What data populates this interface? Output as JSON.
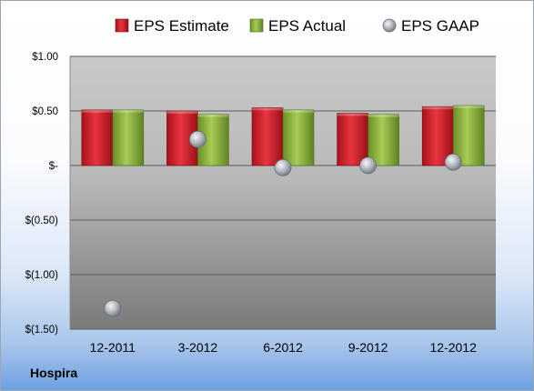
{
  "company": "Hospira",
  "chart_data": {
    "type": "bar",
    "categories": [
      "12-2011",
      "3-2012",
      "6-2012",
      "9-2012",
      "12-2012"
    ],
    "series": [
      {
        "name": "EPS Estimate",
        "mark": "bar",
        "color": "#d9212c",
        "values": [
          0.51,
          0.5,
          0.53,
          0.48,
          0.54
        ]
      },
      {
        "name": "EPS Actual",
        "mark": "bar",
        "color": "#8cb63c",
        "values": [
          0.51,
          0.47,
          0.51,
          0.47,
          0.55
        ]
      },
      {
        "name": "EPS GAAP",
        "mark": "marker",
        "color": "#9aa0a8",
        "values": [
          -1.31,
          0.24,
          -0.02,
          0.0,
          0.03
        ]
      }
    ],
    "y_ticks": [
      {
        "value": 1.0,
        "label": "$1.00"
      },
      {
        "value": 0.5,
        "label": "$0.50"
      },
      {
        "value": 0.0,
        "label": "$-"
      },
      {
        "value": -0.5,
        "label": "$(0.50)"
      },
      {
        "value": -1.0,
        "label": "$(1.00)"
      },
      {
        "value": -1.5,
        "label": "$(1.50)"
      }
    ],
    "ylim": [
      -1.5,
      1.0
    ],
    "grid": true,
    "legend": "top"
  }
}
